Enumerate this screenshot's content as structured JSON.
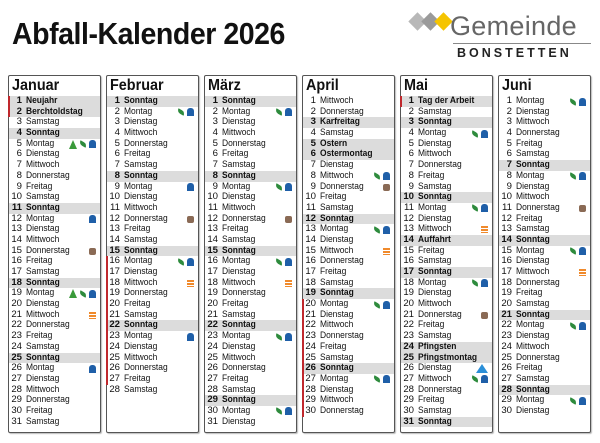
{
  "title": "Abfall-Kalender 2026",
  "logo": {
    "name": "Gemeinde",
    "sub": "BONSTETTEN",
    "colors": [
      "#b8b8b8",
      "#9a9a9a",
      "#f5c400"
    ]
  },
  "colors": {
    "holiday_bg": "#dcdcdc",
    "ferien_bar": "#c0282d",
    "bag": "#1f5fa8",
    "leaf": "#2e8b3d",
    "tree": "#3a9a3a",
    "box": "#8a6a55",
    "paper": "#f08a2c",
    "triangle": "#2a8fd8"
  },
  "icon_legend": {
    "bag": "bag-icon",
    "leaf": "leaf-icon",
    "tree": "christmas-tree-icon",
    "box": "cardboard-box-icon",
    "paper": "paper-bundle-icon",
    "tri": "triangle-icon"
  },
  "months": [
    {
      "name": "Januar",
      "days": [
        {
          "d": 1,
          "t": "Neujahr",
          "h": 1,
          "f": 1
        },
        {
          "d": 2,
          "t": "Berchtoldstag",
          "h": 1,
          "f": 1
        },
        {
          "d": 3,
          "t": "Samstag"
        },
        {
          "d": 4,
          "t": "Sonntag",
          "h": 1
        },
        {
          "d": 5,
          "t": "Montag",
          "i": [
            "tree",
            "leaf",
            "bag"
          ]
        },
        {
          "d": 6,
          "t": "Dienstag"
        },
        {
          "d": 7,
          "t": "Mittwoch"
        },
        {
          "d": 8,
          "t": "Donnerstag"
        },
        {
          "d": 9,
          "t": "Freitag"
        },
        {
          "d": 10,
          "t": "Samstag"
        },
        {
          "d": 11,
          "t": "Sonntag",
          "h": 1
        },
        {
          "d": 12,
          "t": "Montag",
          "i": [
            "bag"
          ]
        },
        {
          "d": 13,
          "t": "Dienstag"
        },
        {
          "d": 14,
          "t": "Mittwoch"
        },
        {
          "d": 15,
          "t": "Donnerstag",
          "i": [
            "box"
          ]
        },
        {
          "d": 16,
          "t": "Freitag"
        },
        {
          "d": 17,
          "t": "Samstag"
        },
        {
          "d": 18,
          "t": "Sonntag",
          "h": 1
        },
        {
          "d": 19,
          "t": "Montag",
          "i": [
            "tree",
            "leaf",
            "bag"
          ]
        },
        {
          "d": 20,
          "t": "Dienstag"
        },
        {
          "d": 21,
          "t": "Mittwoch",
          "i": [
            "paper"
          ]
        },
        {
          "d": 22,
          "t": "Donnerstag"
        },
        {
          "d": 23,
          "t": "Freitag"
        },
        {
          "d": 24,
          "t": "Samstag"
        },
        {
          "d": 25,
          "t": "Sonntag",
          "h": 1
        },
        {
          "d": 26,
          "t": "Montag",
          "i": [
            "bag"
          ]
        },
        {
          "d": 27,
          "t": "Dienstag"
        },
        {
          "d": 28,
          "t": "Mittwoch"
        },
        {
          "d": 29,
          "t": "Donnerstag"
        },
        {
          "d": 30,
          "t": "Freitag"
        },
        {
          "d": 31,
          "t": "Samstag"
        }
      ]
    },
    {
      "name": "Februar",
      "days": [
        {
          "d": 1,
          "t": "Sonntag",
          "h": 1
        },
        {
          "d": 2,
          "t": "Montag",
          "i": [
            "leaf",
            "bag"
          ]
        },
        {
          "d": 3,
          "t": "Dienstag"
        },
        {
          "d": 4,
          "t": "Mittwoch"
        },
        {
          "d": 5,
          "t": "Donnerstag"
        },
        {
          "d": 6,
          "t": "Freitag"
        },
        {
          "d": 7,
          "t": "Samstag"
        },
        {
          "d": 8,
          "t": "Sonntag",
          "h": 1
        },
        {
          "d": 9,
          "t": "Montag",
          "i": [
            "bag"
          ]
        },
        {
          "d": 10,
          "t": "Dienstag"
        },
        {
          "d": 11,
          "t": "Mittwoch"
        },
        {
          "d": 12,
          "t": "Donnerstag",
          "i": [
            "box"
          ]
        },
        {
          "d": 13,
          "t": "Freitag"
        },
        {
          "d": 14,
          "t": "Samstag"
        },
        {
          "d": 15,
          "t": "Sonntag",
          "h": 1
        },
        {
          "d": 16,
          "t": "Montag",
          "i": [
            "leaf",
            "bag"
          ],
          "f": 1
        },
        {
          "d": 17,
          "t": "Dienstag",
          "f": 1
        },
        {
          "d": 18,
          "t": "Mittwoch",
          "i": [
            "paper"
          ],
          "f": 1
        },
        {
          "d": 19,
          "t": "Donnerstag",
          "f": 1
        },
        {
          "d": 20,
          "t": "Freitag",
          "f": 1
        },
        {
          "d": 21,
          "t": "Samstag",
          "f": 1
        },
        {
          "d": 22,
          "t": "Sonntag",
          "h": 1,
          "f": 1
        },
        {
          "d": 23,
          "t": "Montag",
          "i": [
            "bag"
          ],
          "f": 1
        },
        {
          "d": 24,
          "t": "Dienstag",
          "f": 1
        },
        {
          "d": 25,
          "t": "Mittwoch",
          "f": 1
        },
        {
          "d": 26,
          "t": "Donnerstag",
          "f": 1
        },
        {
          "d": 27,
          "t": "Freitag",
          "f": 1
        },
        {
          "d": 28,
          "t": "Samstag"
        }
      ]
    },
    {
      "name": "März",
      "days": [
        {
          "d": 1,
          "t": "Sonntag",
          "h": 1
        },
        {
          "d": 2,
          "t": "Montag",
          "i": [
            "leaf",
            "bag"
          ]
        },
        {
          "d": 3,
          "t": "Dienstag"
        },
        {
          "d": 4,
          "t": "Mittwoch"
        },
        {
          "d": 5,
          "t": "Donnerstag"
        },
        {
          "d": 6,
          "t": "Freitag"
        },
        {
          "d": 7,
          "t": "Samstag"
        },
        {
          "d": 8,
          "t": "Sonntag",
          "h": 1
        },
        {
          "d": 9,
          "t": "Montag",
          "i": [
            "leaf",
            "bag"
          ]
        },
        {
          "d": 10,
          "t": "Dienstag"
        },
        {
          "d": 11,
          "t": "Mittwoch"
        },
        {
          "d": 12,
          "t": "Donnerstag",
          "i": [
            "box"
          ]
        },
        {
          "d": 13,
          "t": "Freitag"
        },
        {
          "d": 14,
          "t": "Samstag"
        },
        {
          "d": 15,
          "t": "Sonntag",
          "h": 1
        },
        {
          "d": 16,
          "t": "Montag",
          "i": [
            "leaf",
            "bag"
          ]
        },
        {
          "d": 17,
          "t": "Dienstag"
        },
        {
          "d": 18,
          "t": "Mittwoch",
          "i": [
            "paper"
          ]
        },
        {
          "d": 19,
          "t": "Donnerstag"
        },
        {
          "d": 20,
          "t": "Freitag"
        },
        {
          "d": 21,
          "t": "Samstag"
        },
        {
          "d": 22,
          "t": "Sonntag",
          "h": 1
        },
        {
          "d": 23,
          "t": "Montag",
          "i": [
            "leaf",
            "bag"
          ]
        },
        {
          "d": 24,
          "t": "Dienstag"
        },
        {
          "d": 25,
          "t": "Mittwoch"
        },
        {
          "d": 26,
          "t": "Donnerstag"
        },
        {
          "d": 27,
          "t": "Freitag"
        },
        {
          "d": 28,
          "t": "Samstag"
        },
        {
          "d": 29,
          "t": "Sonntag",
          "h": 1
        },
        {
          "d": 30,
          "t": "Montag",
          "i": [
            "leaf",
            "bag"
          ]
        },
        {
          "d": 31,
          "t": "Dienstag"
        }
      ]
    },
    {
      "name": "April",
      "days": [
        {
          "d": 1,
          "t": "Mittwoch"
        },
        {
          "d": 2,
          "t": "Donnerstag"
        },
        {
          "d": 3,
          "t": "Karfreitag",
          "h": 1
        },
        {
          "d": 4,
          "t": "Samstag"
        },
        {
          "d": 5,
          "t": "Ostern",
          "h": 1
        },
        {
          "d": 6,
          "t": "Ostermontag",
          "h": 1
        },
        {
          "d": 7,
          "t": "Dienstag"
        },
        {
          "d": 8,
          "t": "Mittwoch",
          "i": [
            "leaf",
            "bag"
          ]
        },
        {
          "d": 9,
          "t": "Donnerstag",
          "i": [
            "box"
          ]
        },
        {
          "d": 10,
          "t": "Freitag"
        },
        {
          "d": 11,
          "t": "Samstag"
        },
        {
          "d": 12,
          "t": "Sonntag",
          "h": 1
        },
        {
          "d": 13,
          "t": "Montag",
          "i": [
            "leaf",
            "bag"
          ]
        },
        {
          "d": 14,
          "t": "Dienstag"
        },
        {
          "d": 15,
          "t": "Mittwoch",
          "i": [
            "paper"
          ]
        },
        {
          "d": 16,
          "t": "Donnerstag"
        },
        {
          "d": 17,
          "t": "Freitag"
        },
        {
          "d": 18,
          "t": "Samstag"
        },
        {
          "d": 19,
          "t": "Sonntag",
          "h": 1
        },
        {
          "d": 20,
          "t": "Montag",
          "i": [
            "leaf",
            "bag"
          ],
          "f": 1
        },
        {
          "d": 21,
          "t": "Dienstag",
          "f": 1
        },
        {
          "d": 22,
          "t": "Mittwoch",
          "f": 1
        },
        {
          "d": 23,
          "t": "Donnerstag",
          "f": 1
        },
        {
          "d": 24,
          "t": "Freitag",
          "f": 1
        },
        {
          "d": 25,
          "t": "Samstag",
          "f": 1
        },
        {
          "d": 26,
          "t": "Sonntag",
          "h": 1,
          "f": 1
        },
        {
          "d": 27,
          "t": "Montag",
          "i": [
            "leaf",
            "bag"
          ],
          "f": 1
        },
        {
          "d": 28,
          "t": "Dienstag",
          "f": 1
        },
        {
          "d": 29,
          "t": "Mittwoch",
          "f": 1
        },
        {
          "d": 30,
          "t": "Donnerstag",
          "f": 1
        }
      ]
    },
    {
      "name": "Mai",
      "days": [
        {
          "d": 1,
          "t": "Tag der Arbeit",
          "h": 1,
          "f": 1
        },
        {
          "d": 2,
          "t": "Samstag"
        },
        {
          "d": 3,
          "t": "Sonntag",
          "h": 1
        },
        {
          "d": 4,
          "t": "Montag",
          "i": [
            "leaf",
            "bag"
          ]
        },
        {
          "d": 5,
          "t": "Dienstag"
        },
        {
          "d": 6,
          "t": "Mittwoch"
        },
        {
          "d": 7,
          "t": "Donnerstag"
        },
        {
          "d": 8,
          "t": "Freitag"
        },
        {
          "d": 9,
          "t": "Samstag"
        },
        {
          "d": 10,
          "t": "Sonntag",
          "h": 1
        },
        {
          "d": 11,
          "t": "Montag",
          "i": [
            "leaf",
            "bag"
          ]
        },
        {
          "d": 12,
          "t": "Dienstag"
        },
        {
          "d": 13,
          "t": "Mittwoch",
          "i": [
            "paper"
          ]
        },
        {
          "d": 14,
          "t": "Auffahrt",
          "h": 1
        },
        {
          "d": 15,
          "t": "Freitag"
        },
        {
          "d": 16,
          "t": "Samstag"
        },
        {
          "d": 17,
          "t": "Sonntag",
          "h": 1
        },
        {
          "d": 18,
          "t": "Montag",
          "i": [
            "leaf",
            "bag"
          ]
        },
        {
          "d": 19,
          "t": "Dienstag"
        },
        {
          "d": 20,
          "t": "Mittwoch"
        },
        {
          "d": 21,
          "t": "Donnerstag",
          "i": [
            "box"
          ]
        },
        {
          "d": 22,
          "t": "Freitag"
        },
        {
          "d": 23,
          "t": "Samstag"
        },
        {
          "d": 24,
          "t": "Pfingsten",
          "h": 1
        },
        {
          "d": 25,
          "t": "Pfingstmontag",
          "h": 1
        },
        {
          "d": 26,
          "t": "Dienstag",
          "i": [
            "tri"
          ]
        },
        {
          "d": 27,
          "t": "Mittwoch",
          "i": [
            "leaf",
            "bag"
          ]
        },
        {
          "d": 28,
          "t": "Donnerstag"
        },
        {
          "d": 29,
          "t": "Freitag"
        },
        {
          "d": 30,
          "t": "Samstag"
        },
        {
          "d": 31,
          "t": "Sonntag",
          "h": 1
        }
      ]
    },
    {
      "name": "Juni",
      "days": [
        {
          "d": 1,
          "t": "Montag",
          "i": [
            "leaf",
            "bag"
          ]
        },
        {
          "d": 2,
          "t": "Dienstag"
        },
        {
          "d": 3,
          "t": "Mittwoch"
        },
        {
          "d": 4,
          "t": "Donnerstag"
        },
        {
          "d": 5,
          "t": "Freitag"
        },
        {
          "d": 6,
          "t": "Samstag"
        },
        {
          "d": 7,
          "t": "Sonntag",
          "h": 1
        },
        {
          "d": 8,
          "t": "Montag",
          "i": [
            "leaf",
            "bag"
          ]
        },
        {
          "d": 9,
          "t": "Dienstag"
        },
        {
          "d": 10,
          "t": "Mittwoch"
        },
        {
          "d": 11,
          "t": "Donnerstag",
          "i": [
            "box"
          ]
        },
        {
          "d": 12,
          "t": "Freitag"
        },
        {
          "d": 13,
          "t": "Samstag"
        },
        {
          "d": 14,
          "t": "Sonntag",
          "h": 1
        },
        {
          "d": 15,
          "t": "Montag",
          "i": [
            "leaf",
            "bag"
          ]
        },
        {
          "d": 16,
          "t": "Dienstag"
        },
        {
          "d": 17,
          "t": "Mittwoch",
          "i": [
            "paper"
          ]
        },
        {
          "d": 18,
          "t": "Donnerstag"
        },
        {
          "d": 19,
          "t": "Freitag"
        },
        {
          "d": 20,
          "t": "Samstag"
        },
        {
          "d": 21,
          "t": "Sonntag",
          "h": 1
        },
        {
          "d": 22,
          "t": "Montag",
          "i": [
            "leaf",
            "bag"
          ]
        },
        {
          "d": 23,
          "t": "Dienstag"
        },
        {
          "d": 24,
          "t": "Mittwoch"
        },
        {
          "d": 25,
          "t": "Donnerstag"
        },
        {
          "d": 26,
          "t": "Freitag"
        },
        {
          "d": 27,
          "t": "Samstag"
        },
        {
          "d": 28,
          "t": "Sonntag",
          "h": 1
        },
        {
          "d": 29,
          "t": "Montag",
          "i": [
            "leaf",
            "bag"
          ]
        },
        {
          "d": 30,
          "t": "Dienstag"
        }
      ]
    }
  ]
}
